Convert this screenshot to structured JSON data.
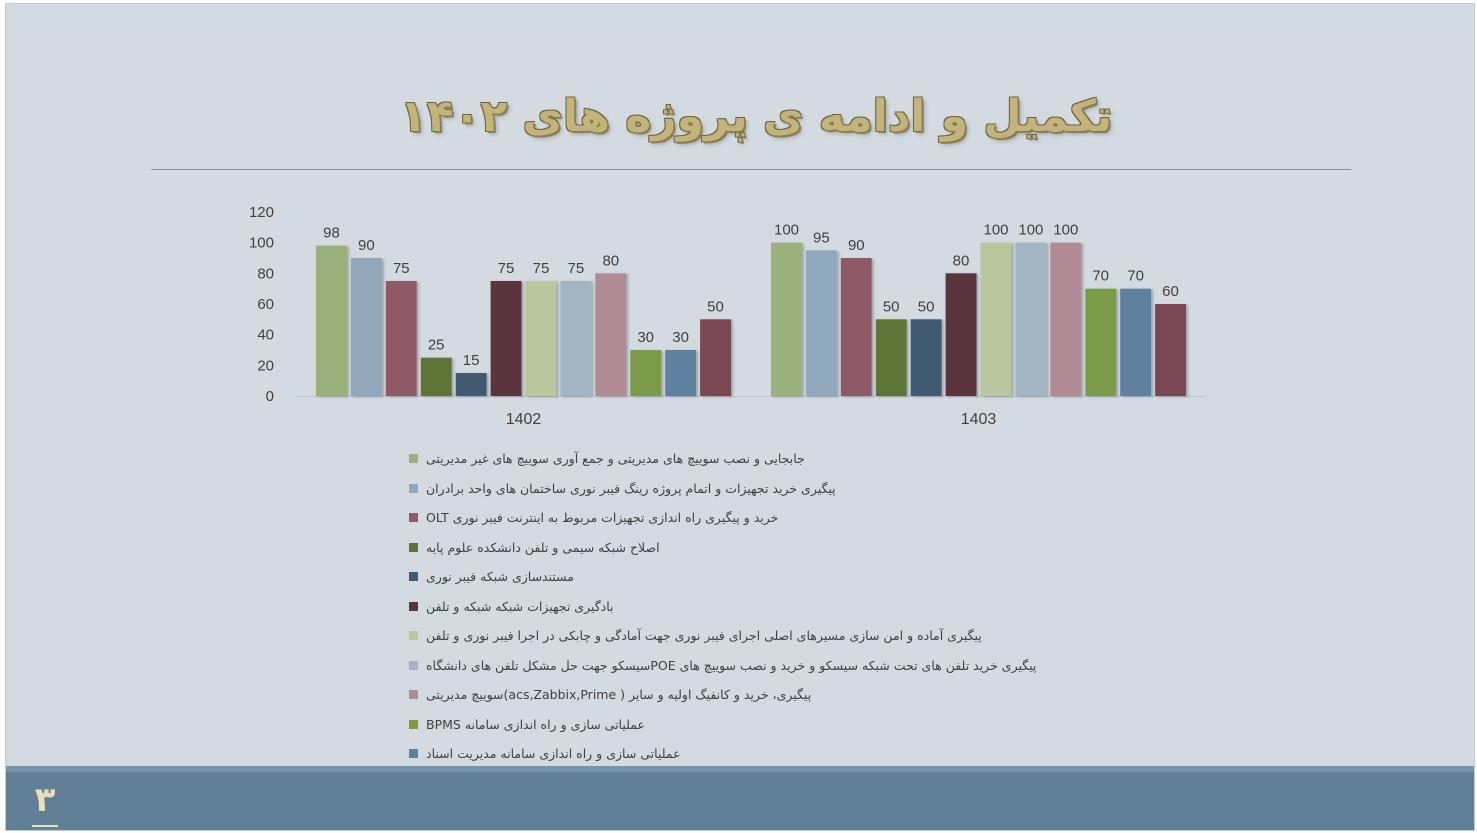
{
  "slide": {
    "title": "تکمیل و ادامه ی پروژه های ۱۴۰۲",
    "page_number": "۳"
  },
  "colors": {
    "background": "#d3dbe1",
    "title": "#c4b37a",
    "footer": "#617f97",
    "page_number": "#e9dfb8"
  },
  "chart_data": {
    "type": "bar",
    "categories": [
      "1402",
      "1403"
    ],
    "ylim": [
      0,
      120
    ],
    "yticks": [
      "0",
      "20",
      "40",
      "60",
      "80",
      "100",
      "120"
    ],
    "grid": false,
    "legend_position": "bottom",
    "data_labels": true,
    "series": [
      {
        "name": "جابجایی و نصب سوییچ های مدیریتی  و جمع آوری سوییچ های غیر مدیریتی",
        "color": "#9bb07a",
        "values": [
          98,
          100
        ]
      },
      {
        "name": "پیگیری خرید تجهیزات و اتمام پروژه رینگ فیبر نوری ساختمان های واحد برادران",
        "color": "#8fa8bc",
        "values": [
          90,
          95
        ]
      },
      {
        "name": "خرید و پیگیری راه اندازی تجهیزات مربوط به اینترنت فیبر نوری OLT",
        "color": "#8e5a68",
        "values": [
          75,
          90
        ]
      },
      {
        "name": "اصلاح شبکه سیمی و تلفن دانشکده علوم پایه",
        "color": "#5f7438",
        "values": [
          25,
          50
        ]
      },
      {
        "name": "مستندسازی شبکه فیبر نوری",
        "color": "#3f5a72",
        "values": [
          15,
          50
        ]
      },
      {
        "name": "بادگیری تجهیزات شبکه شبکه و تلفن",
        "color": "#5a3440",
        "values": [
          75,
          80
        ]
      },
      {
        "name": "پیگیری آماده و امن سازی مسیرهای اصلی اجرای فیبر نوری جهت آمادگی و چابکی در اجرا  فیبر نوری و تلفن",
        "color": "#b8c79e",
        "values": [
          75,
          100
        ]
      },
      {
        "name": "پیگیری خرید تلفن های تحت شبکه سیسکو و خرید و نصب سوییچ های  POEسیسکو جهت حل مشکل تلفن های دانشگاه",
        "color": "#a3b5c3",
        "values": [
          75,
          100
        ]
      },
      {
        "name": "پیگیری، خرید و کانفیگ اولیه و سایر ( acs,Zabbix,Prime)سوییچ مدیریتی",
        "color": "#b08a95",
        "values": [
          80,
          100
        ]
      },
      {
        "name": "عملیاتی سازی و راه اندازی سامانه BPMS",
        "color": "#7d9c48",
        "values": [
          30,
          70
        ]
      },
      {
        "name": "عملیاتی سازی و راه اندازی سامانه مدیریت اسناد",
        "color": "#5e81a0",
        "values": [
          30,
          70
        ]
      },
      {
        "name": "",
        "color": "#7a4655",
        "values": [
          50,
          60
        ]
      }
    ]
  },
  "legend_items": [
    {
      "label": "جابجایی و نصب سوییچ های مدیریتی  و جمع آوری سوییچ های غیر مدیریتی",
      "color": "#9bb07a"
    },
    {
      "label": "پیگیری خرید تجهیزات و اتمام پروژه رینگ فیبر نوری ساختمان های واحد برادران",
      "color": "#8fa8bc"
    },
    {
      "label": "خرید و پیگیری راه اندازی تجهیزات مربوط به اینترنت فیبر نوری OLT",
      "color": "#8e5a68"
    },
    {
      "label": "اصلاح شبکه سیمی و تلفن دانشکده علوم پایه",
      "color": "#5f7438"
    },
    {
      "label": "مستندسازی شبکه فیبر نوری",
      "color": "#3f5a72"
    },
    {
      "label": "بادگیری تجهیزات شبکه شبکه و تلفن",
      "color": "#5a3440"
    },
    {
      "label": "پیگیری آماده و امن سازی مسیرهای اصلی اجرای فیبر نوری جهت آمادگی و چابکی در اجرا  فیبر نوری و تلفن",
      "color": "#b8c79e"
    },
    {
      "label": "پیگیری خرید تلفن های تحت شبکه سیسکو و خرید و نصب سوییچ های  POEسیسکو جهت حل مشکل تلفن های دانشگاه",
      "color": "#a3b5c3"
    },
    {
      "label": "پیگیری، خرید و کانفیگ اولیه و سایر ( acs,Zabbix,Prime)سوییچ مدیریتی",
      "color": "#b08a95"
    },
    {
      "label": "عملیاتی سازی و راه اندازی سامانه BPMS",
      "color": "#7d9c48"
    },
    {
      "label": "عملیاتی سازی و راه اندازی سامانه مدیریت اسناد",
      "color": "#5e81a0"
    }
  ]
}
